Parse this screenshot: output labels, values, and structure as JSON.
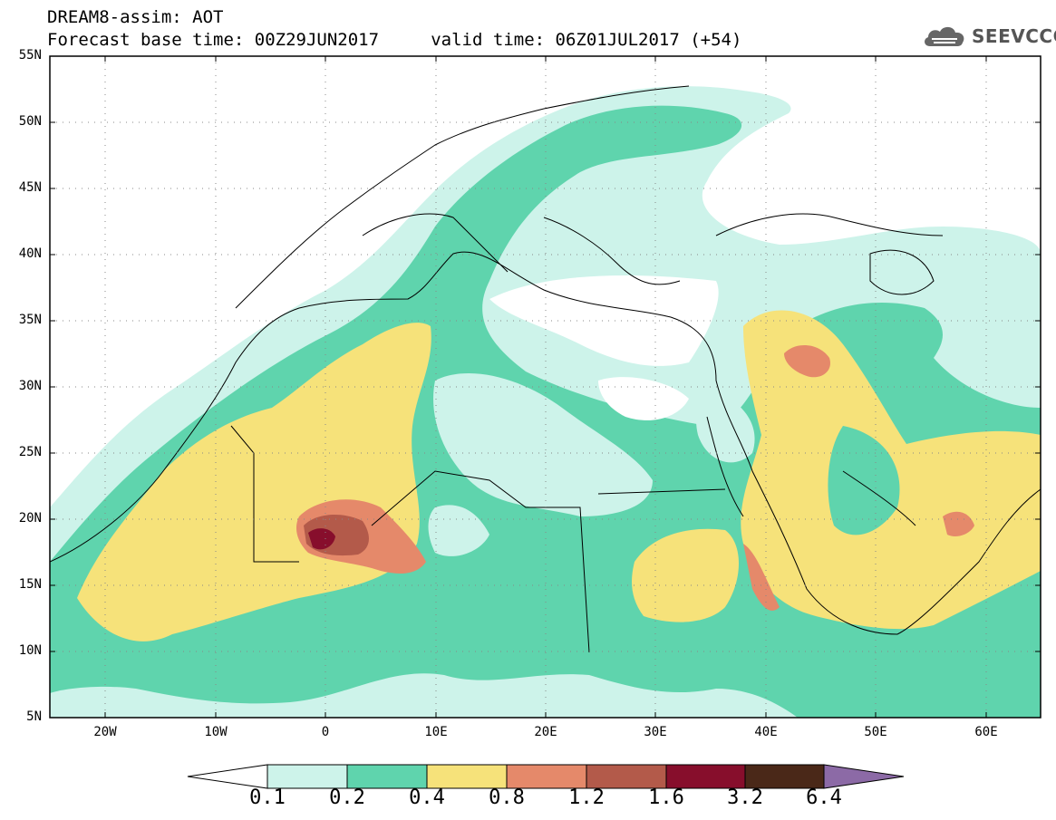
{
  "header": {
    "line1": "DREAM8-assim: AOT",
    "line2": "Forecast base time: 00Z29JUN2017     valid time: 06Z01JUL2017 (+54)"
  },
  "logo": {
    "text": "SEEVCCC",
    "icon": "cloud-icon"
  },
  "map": {
    "lat_labels": [
      "55N",
      "50N",
      "45N",
      "40N",
      "35N",
      "30N",
      "25N",
      "20N",
      "15N",
      "10N",
      "5N"
    ],
    "lon_labels": [
      "20W",
      "10W",
      "0",
      "10E",
      "20E",
      "30E",
      "40E",
      "50E",
      "60E"
    ],
    "lat_range": [
      5,
      55
    ],
    "lon_range": [
      -25,
      65
    ]
  },
  "colorbar": {
    "labels": [
      "0.1",
      "0.2",
      "0.4",
      "0.8",
      "1.2",
      "1.6",
      "3.2",
      "6.4"
    ],
    "colors": [
      "#cdf3ea",
      "#5fd4ad",
      "#f6e27a",
      "#e5896a",
      "#b35a4a",
      "#870e2c",
      "#4a2818",
      "#8c6aa6"
    ]
  }
}
